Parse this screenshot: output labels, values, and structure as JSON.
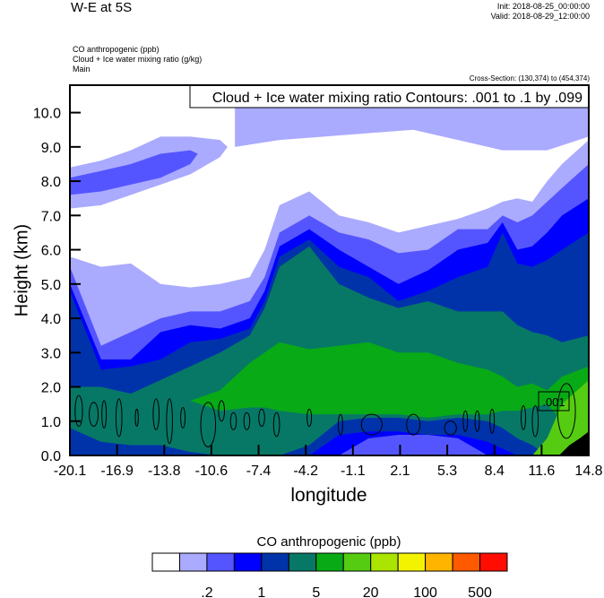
{
  "header": {
    "title": "W-E at 5S",
    "init": "Init: 2018-08-25_00:00:00",
    "valid": "Valid: 2018-08-29_12:00:00",
    "fields": [
      "CO anthropogenic   (ppb)",
      "Cloud + Ice water mixing ratio   (g/kg)",
      "Main"
    ],
    "cross_section": "Cross-Section: (130,374) to (454,374)"
  },
  "chart_data": {
    "type": "heatmap",
    "subtype": "filled contour cross-section with line contours",
    "xlabel": "longitude",
    "ylabel": "Height (km)",
    "xlim": [
      -20.1,
      14.8
    ],
    "ylim": [
      0,
      10.8
    ],
    "xticks": [
      "-20.1",
      "-16.9",
      "-13.8",
      "-10.6",
      "-7.4",
      "-4.2",
      "-1.1",
      "2.1",
      "5.3",
      "8.4",
      "11.6",
      "14.8"
    ],
    "yticks": [
      "0.0",
      "1.0",
      "2.0",
      "3.0",
      "4.0",
      "5.0",
      "6.0",
      "7.0",
      "8.0",
      "9.0",
      "10.0"
    ],
    "contour_label": "Cloud + Ice water mixing ratio Contours: .001 to .1 by .099",
    "contour_line_label": ".001",
    "colorbar": {
      "title": "CO anthropogenic  (ppb)",
      "colors": [
        "#ffffff",
        "#aaaaff",
        "#5555ff",
        "#0000ff",
        "#0033aa",
        "#077866",
        "#08aa16",
        "#55cc11",
        "#aae400",
        "#f3f300",
        "#ffb400",
        "#ff5a00",
        "#ff0d00"
      ],
      "labels": [
        {
          "after_box": 2,
          "text": ".2"
        },
        {
          "after_box": 4,
          "text": "1"
        },
        {
          "after_box": 6,
          "text": "5"
        },
        {
          "after_box": 8,
          "text": "20"
        },
        {
          "after_box": 10,
          "text": "100"
        },
        {
          "after_box": 12,
          "text": "500"
        }
      ]
    },
    "lon_samples": [
      -20.1,
      -18,
      -16,
      -14,
      -12,
      -10,
      -8,
      -7,
      -6,
      -4,
      -2,
      0,
      2,
      4,
      6,
      8,
      9,
      10,
      11,
      12,
      13,
      14.8
    ],
    "bands": [
      {
        "color_index": 1,
        "bottom": [
          0,
          0,
          0,
          0,
          0,
          0,
          0,
          0,
          0,
          0,
          0,
          0,
          0,
          0,
          0,
          0,
          0,
          0,
          0,
          0,
          0,
          0
        ],
        "top": [
          5.8,
          5.5,
          5.6,
          5.0,
          4.9,
          5.0,
          5.2,
          6.0,
          7.3,
          7.7,
          7.0,
          6.8,
          6.5,
          6.7,
          6.9,
          7.2,
          7.4,
          7.5,
          7.4,
          8.0,
          8.5,
          9.2
        ]
      },
      {
        "color_index": 2,
        "bottom": [
          0,
          0,
          0,
          0,
          0,
          0,
          0,
          0,
          0,
          0,
          0,
          0,
          0,
          0,
          0,
          0,
          0,
          0,
          0,
          0,
          0,
          0
        ],
        "top": [
          5.5,
          3.2,
          3.6,
          4.0,
          4.2,
          4.2,
          4.5,
          5.2,
          6.5,
          7.0,
          6.5,
          6.3,
          5.9,
          6.0,
          6.6,
          6.6,
          7.0,
          6.8,
          7.0,
          7.4,
          7.8,
          8.5
        ]
      },
      {
        "color_index": 3,
        "bottom": [
          0,
          0,
          0,
          0,
          0,
          0,
          0,
          0,
          0,
          0,
          0,
          0,
          0,
          0,
          0,
          0,
          0,
          0,
          0,
          0,
          0,
          0
        ],
        "top": [
          5.0,
          2.8,
          2.8,
          3.6,
          3.8,
          3.7,
          4.0,
          4.8,
          6.1,
          6.6,
          6.0,
          5.5,
          5.0,
          5.4,
          6.0,
          6.2,
          6.8,
          6.0,
          6.1,
          6.5,
          7.0,
          7.5
        ]
      },
      {
        "color_index": 4,
        "bottom": [
          0,
          0,
          0,
          0,
          0,
          0,
          0,
          0,
          0,
          0,
          0,
          0,
          0,
          0,
          0,
          0,
          0,
          0,
          0,
          0,
          0,
          0
        ],
        "top": [
          4.8,
          2.5,
          2.6,
          2.8,
          3.3,
          3.4,
          3.7,
          4.5,
          5.8,
          6.3,
          5.5,
          5.2,
          4.5,
          4.8,
          5.2,
          5.5,
          6.5,
          5.6,
          5.5,
          5.7,
          6.0,
          6.5
        ]
      },
      {
        "color_index": 5,
        "bottom": [
          0,
          0,
          0,
          0,
          0,
          0,
          0,
          0,
          0,
          0,
          0,
          0,
          0,
          0,
          0,
          0,
          0,
          0,
          0,
          0,
          0,
          0
        ],
        "top": [
          2.0,
          2.0,
          1.8,
          2.2,
          2.6,
          3.0,
          3.5,
          4.3,
          5.5,
          6.1,
          5.0,
          4.6,
          4.3,
          4.5,
          4.2,
          4.2,
          4.2,
          3.8,
          3.6,
          3.5,
          3.3,
          3.5
        ]
      },
      {
        "color_index": 6,
        "bottom": [
          0,
          0,
          0,
          0,
          1.6,
          1.3,
          1.4,
          1.4,
          1.3,
          1.2,
          1.2,
          1.2,
          1.2,
          1.1,
          1.2,
          1.2,
          1.3,
          1.3,
          1.4,
          1.5,
          1.0,
          0.3
        ],
        "top": [
          0,
          0,
          0,
          0,
          1.6,
          1.9,
          2.7,
          3.0,
          3.3,
          3.1,
          3.2,
          3.3,
          3.0,
          3.0,
          2.7,
          2.5,
          2.3,
          2.0,
          2.1,
          1.9,
          2.3,
          2.6
        ]
      },
      {
        "color_index": 4,
        "bottom": [
          0,
          0,
          0,
          0,
          0,
          0,
          0,
          0,
          0,
          0,
          0,
          0,
          0,
          0,
          0,
          0,
          0,
          0,
          0,
          0,
          0,
          0
        ],
        "top": [
          0.8,
          0.4,
          0.3,
          0.3,
          0.1,
          0,
          0,
          0,
          0,
          0.3,
          1.0,
          1.1,
          1.1,
          1.0,
          1.1,
          1.0,
          0.8,
          0.5,
          0.3,
          0,
          0,
          0
        ]
      },
      {
        "color_index": 3,
        "bottom": [
          0,
          0,
          0,
          0,
          0,
          0,
          0,
          0,
          0,
          0,
          0,
          0,
          0,
          0,
          0,
          0,
          0,
          0,
          0,
          0,
          0,
          0
        ],
        "top": [
          0,
          0,
          0,
          0,
          0,
          0,
          0,
          0,
          0,
          0,
          0.6,
          0.7,
          0.7,
          0.6,
          0.6,
          0.4,
          0.2,
          0,
          0,
          0,
          0,
          0
        ]
      },
      {
        "color_index": 2,
        "bottom": [
          0,
          0,
          0,
          0,
          0,
          0,
          0,
          0,
          0,
          0,
          0,
          0,
          0,
          0,
          0,
          0,
          0,
          0,
          0,
          0,
          0,
          0
        ],
        "top": [
          0,
          0,
          0,
          0,
          0,
          0,
          0,
          0,
          0,
          0,
          0,
          0.5,
          0.6,
          0.6,
          0.5,
          0,
          0,
          0,
          0,
          0,
          0,
          0
        ]
      },
      {
        "color_index": 7,
        "bottom": [
          0,
          0,
          0,
          0,
          0,
          0,
          0,
          0,
          0,
          0,
          0,
          0,
          0,
          0,
          0,
          0,
          0,
          0,
          0,
          0,
          0,
          0
        ],
        "top": [
          0,
          0,
          0,
          0,
          0,
          0,
          0,
          0,
          0,
          0,
          0,
          0,
          0,
          0,
          0,
          0,
          0,
          0,
          0,
          0.5,
          1.5,
          2.2
        ]
      }
    ],
    "upper_bands": [
      {
        "color_index": 1,
        "lons": [
          -20.1,
          -18,
          -16,
          -14,
          -12,
          -10,
          -9.5
        ],
        "bottom": [
          7.2,
          7.3,
          7.6,
          7.9,
          8.2,
          8.7,
          9.0
        ],
        "top": [
          8.4,
          8.6,
          8.9,
          9.3,
          9.3,
          9.2,
          9.0
        ]
      },
      {
        "color_index": 2,
        "lons": [
          -20.1,
          -18,
          -16,
          -14,
          -12,
          -11.5
        ],
        "bottom": [
          7.6,
          7.7,
          7.9,
          8.1,
          8.5,
          8.8
        ],
        "top": [
          8.1,
          8.3,
          8.5,
          8.8,
          8.9,
          8.8
        ]
      },
      {
        "color_index": 1,
        "lons": [
          -9,
          -6,
          -3,
          0,
          3,
          6,
          9,
          12,
          14.8
        ],
        "bottom": [
          9.0,
          9.2,
          9.3,
          9.4,
          9.5,
          9.2,
          8.9,
          8.9,
          9.3
        ],
        "top": [
          10.8,
          10.8,
          10.8,
          10.8,
          10.8,
          10.8,
          10.8,
          10.8,
          10.8
        ]
      }
    ],
    "terrain": {
      "lons": [
        12.8,
        13.5,
        14.2,
        14.8
      ],
      "top": [
        0,
        0.3,
        0.5,
        0.7
      ]
    },
    "cloud_contours": [
      [
        -19.5,
        1.3,
        0.5,
        0.9
      ],
      [
        -18.5,
        1.2,
        0.6,
        0.7
      ],
      [
        -17.8,
        1.2,
        0.3,
        0.8
      ],
      [
        -16.8,
        1.1,
        0.4,
        1.1
      ],
      [
        -15.6,
        1.1,
        0.2,
        0.5
      ],
      [
        -14.3,
        1.2,
        0.4,
        0.9
      ],
      [
        -13.4,
        1.0,
        0.4,
        1.3
      ],
      [
        -12.5,
        1.1,
        0.3,
        0.6
      ],
      [
        -10.8,
        0.9,
        1.0,
        1.3
      ],
      [
        -9.9,
        1.3,
        0.4,
        0.6
      ],
      [
        -9.1,
        1.0,
        0.4,
        0.5
      ],
      [
        -8.2,
        1.0,
        0.4,
        0.5
      ],
      [
        -7.2,
        1.1,
        0.4,
        0.5
      ],
      [
        -6.2,
        0.9,
        0.4,
        0.7
      ],
      [
        -4.0,
        1.1,
        0.3,
        0.5
      ],
      [
        -1.9,
        0.9,
        0.3,
        0.6
      ],
      [
        0.2,
        0.9,
        1.4,
        0.6
      ],
      [
        3.0,
        0.9,
        0.9,
        0.6
      ],
      [
        5.5,
        0.8,
        0.8,
        0.4
      ],
      [
        6.5,
        1.0,
        0.3,
        0.6
      ],
      [
        7.3,
        1.0,
        0.3,
        0.6
      ],
      [
        8.3,
        1.0,
        0.3,
        0.7
      ],
      [
        10.4,
        1.1,
        0.3,
        0.7
      ],
      [
        11.2,
        1.0,
        0.4,
        0.9
      ],
      [
        13.3,
        1.3,
        1.2,
        1.6
      ]
    ]
  }
}
